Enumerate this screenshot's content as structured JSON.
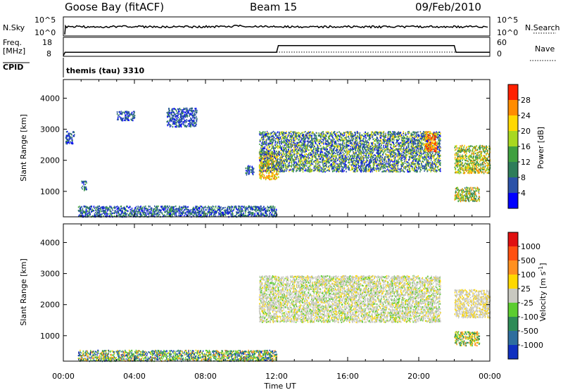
{
  "header": {
    "station": "Goose Bay (fitACF)",
    "beam": "Beam 15",
    "date": "09/Feb/2010"
  },
  "strip": {
    "nsky_label": "N.Sky",
    "nsky_ticks": [
      "10^5",
      "10^0"
    ],
    "nsearch_ticks": [
      "10^5",
      "10^0"
    ],
    "nsearch_label": "N.Search",
    "freq_label": "Freq.",
    "freq_unit": "[MHz]",
    "freq_ticks": [
      "18",
      "8"
    ],
    "nave_ticks": [
      "60",
      "0"
    ],
    "nave_label": "Nave",
    "cpid_label": "CPID",
    "cpid_value": "themis (tau) 3310"
  },
  "xaxis": {
    "label": "Time UT",
    "ticks": [
      "00:00",
      "04:00",
      "08:00",
      "12:00",
      "16:00",
      "20:00",
      "00:00"
    ]
  },
  "power_panel": {
    "ylabel": "Slant Range [km]",
    "yticks": [
      "4000",
      "3000",
      "2000",
      "1000"
    ],
    "colorbar_label": "Power [dB]",
    "colorbar_ticks": [
      "28",
      "24",
      "20",
      "16",
      "12",
      "8",
      "4"
    ],
    "colors": [
      "#0000ff",
      "#2b52a8",
      "#2e7d5a",
      "#40a040",
      "#a8d820",
      "#ffd800",
      "#ff8c00",
      "#ff2000"
    ]
  },
  "velocity_panel": {
    "ylabel": "Slant Range [km]",
    "yticks": [
      "4000",
      "3000",
      "2000",
      "1000"
    ],
    "colorbar_label": "Velocity [m s",
    "colorbar_label_sup": "-1",
    "colorbar_label_end": "]",
    "colorbar_ticks": [
      "1000",
      "500",
      "100",
      "25",
      "-25",
      "-100",
      "-500",
      "-1000"
    ],
    "colors": [
      "#1030c0",
      "#2e6e9e",
      "#2e8b57",
      "#5ccd30",
      "#c8c8c0",
      "#ffd800",
      "#ff9020",
      "#ff5010",
      "#e01010"
    ]
  },
  "chart_data": [
    {
      "type": "line",
      "panel": "N.Sky / N.Search",
      "series": [
        {
          "name": "N.Sky",
          "style": "solid"
        },
        {
          "name": "N.Search",
          "style": "dotted"
        }
      ]
    },
    {
      "type": "line",
      "panel": "Freq. / Nave",
      "x_hours": [
        0,
        0.1,
        12,
        12.1,
        22,
        22.1,
        24
      ],
      "freq_mhz": [
        8,
        10.2,
        10.2,
        14.5,
        14.5,
        10.2,
        10.2
      ],
      "series": [
        {
          "name": "Freq.",
          "style": "solid"
        },
        {
          "name": "Nave",
          "style": "dotted"
        }
      ]
    },
    {
      "type": "heatmap",
      "title": "Power [dB]",
      "xlabel": "Time UT",
      "ylabel": "Slant Range [km]",
      "xlim_hours": [
        0,
        24
      ],
      "ylim_km": [
        180,
        4600
      ],
      "colorbar_range": [
        0,
        32
      ],
      "regions": [
        {
          "t0": 0.8,
          "t1": 12.0,
          "r0": 200,
          "r1": 550,
          "level": "low",
          "dominant": "blue/green"
        },
        {
          "t0": 0.1,
          "t1": 0.6,
          "r0": 2550,
          "r1": 2950,
          "dominant": "blue"
        },
        {
          "t0": 1.0,
          "t1": 1.3,
          "r0": 1050,
          "r1": 1350,
          "dominant": "blue/green"
        },
        {
          "t0": 3.0,
          "t1": 4.0,
          "r0": 3300,
          "r1": 3600,
          "dominant": "blue"
        },
        {
          "t0": 5.8,
          "t1": 7.5,
          "r0": 3100,
          "r1": 3700,
          "dominant": "blue"
        },
        {
          "t0": 10.2,
          "t1": 10.7,
          "r0": 1550,
          "r1": 1850,
          "dominant": "blue/green"
        },
        {
          "t0": 11.0,
          "t1": 12.1,
          "r0": 1400,
          "r1": 2300,
          "dominant": "orange/yellow"
        },
        {
          "t0": 11.0,
          "t1": 21.2,
          "r0": 1650,
          "r1": 2950,
          "dominant": "blue/green/yellow"
        },
        {
          "t0": 20.3,
          "t1": 21.0,
          "r0": 2300,
          "r1": 2950,
          "dominant": "orange"
        },
        {
          "t0": 22.0,
          "t1": 24.0,
          "r0": 1600,
          "r1": 2500,
          "dominant": "green/yellow"
        },
        {
          "t0": 22.0,
          "t1": 23.4,
          "r0": 700,
          "r1": 1150,
          "dominant": "orange/green"
        }
      ]
    },
    {
      "type": "heatmap",
      "title": "Velocity [m s^-1]",
      "xlabel": "Time UT",
      "ylabel": "Slant Range [km]",
      "xlim_hours": [
        0,
        24
      ],
      "ylim_km": [
        180,
        4600
      ],
      "colorbar_levels": [
        1000,
        500,
        100,
        25,
        -25,
        -100,
        -500,
        -1000
      ],
      "regions": [
        {
          "t0": 0.8,
          "t1": 12.0,
          "r0": 200,
          "r1": 550,
          "dominant": "green/mixed"
        },
        {
          "t0": 11.0,
          "t1": 21.2,
          "r0": 1450,
          "r1": 2950,
          "dominant": "grey (ground scatter)"
        },
        {
          "t0": 22.0,
          "t1": 24.0,
          "r0": 1600,
          "r1": 2500,
          "dominant": "grey"
        },
        {
          "t0": 22.0,
          "t1": 23.4,
          "r0": 700,
          "r1": 1150,
          "dominant": "green/orange"
        }
      ]
    }
  ]
}
